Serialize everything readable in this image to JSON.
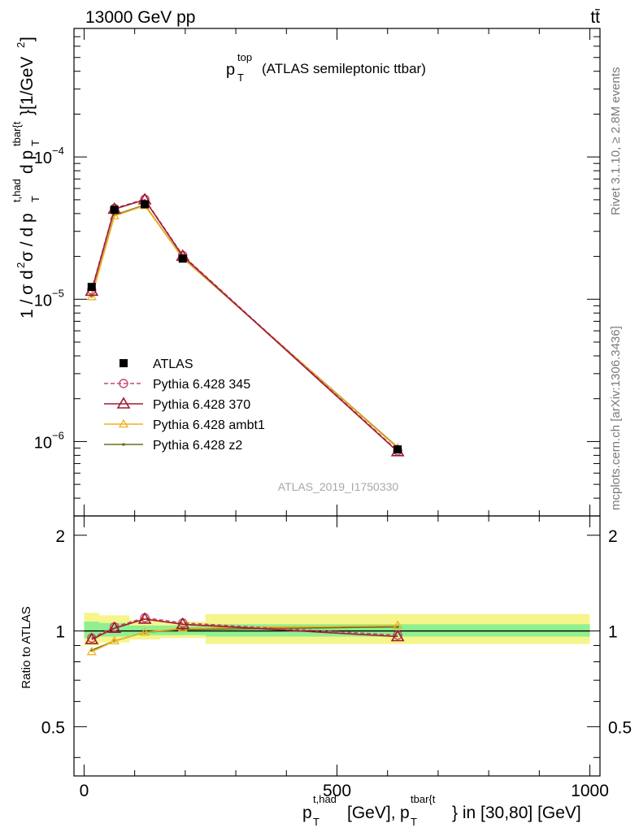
{
  "header": {
    "energy_label": "13000 GeV pp",
    "process_label": "tt̄",
    "plot_title": "(ATLAS semileptonic ttbar)",
    "plot_title_symbol": "p",
    "plot_title_sup": "top",
    "plot_title_sub": "T"
  },
  "side": {
    "rivet_label": "Rivet 3.1.10, ≥ 2.8M events",
    "mcplots_label": "mcplots.cern.ch [arXiv:1306.3436]"
  },
  "watermark": "ATLAS_2019_I1750330",
  "ratio_ylabel": "Ratio to ATLAS",
  "colors": {
    "data": "#000000",
    "p345": "#c44c6c",
    "p370": "#9e1b32",
    "ambt1": "#f0b020",
    "z2": "#6e6e1e",
    "band_inner": "#90f090",
    "band_outer": "#f5f58c"
  },
  "chart_data": [
    {
      "type": "line",
      "panel": "main",
      "title": "(ATLAS semileptonic ttbar)",
      "ylabel": "1 / σ d²σ / d p_T^{t,had} d p_T^{tbar{t}} [1/GeV²]",
      "xlim": [
        -20,
        1020
      ],
      "ylim": [
        3e-07,
        0.0008
      ],
      "y_scale": "log",
      "y_ticks": [
        {
          "value": 1e-06,
          "label": "10",
          "exp": "−6"
        },
        {
          "value": 1e-05,
          "label": "10",
          "exp": "−5"
        },
        {
          "value": 0.0001,
          "label": "10",
          "exp": "−4"
        }
      ],
      "x": [
        15,
        60,
        120,
        195,
        620
      ],
      "series": [
        {
          "name": "ATLAS",
          "marker": "square",
          "values": [
            1.22e-05,
            4.25e-05,
            4.65e-05,
            1.93e-05,
            8.8e-07
          ]
        },
        {
          "name": "Pythia 6.428 345",
          "marker": "circle",
          "dash": true,
          "values": [
            1.16e-05,
            4.35e-05,
            5.05e-05,
            2.03e-05,
            8.6e-07
          ]
        },
        {
          "name": "Pythia 6.428 370",
          "marker": "triangle",
          "values": [
            1.14e-05,
            4.3e-05,
            5e-05,
            2.01e-05,
            8.5e-07
          ]
        },
        {
          "name": "Pythia 6.428 ambt1",
          "marker": "small-triangle",
          "values": [
            1.04e-05,
            3.85e-05,
            4.55e-05,
            1.96e-05,
            9e-07
          ]
        },
        {
          "name": "Pythia 6.428 z2",
          "marker": "dot",
          "values": [
            1.05e-05,
            3.9e-05,
            4.6e-05,
            1.95e-05,
            9.1e-07
          ]
        }
      ],
      "legend_position": "middle-left"
    },
    {
      "type": "line",
      "panel": "ratio",
      "ylabel": "Ratio to ATLAS",
      "xlabel": "p_T^{t,had} [GeV], p_T^{tbar{t}} in [30,80] [GeV]",
      "xlim": [
        -20,
        1020
      ],
      "ylim": [
        0.35,
        2.3
      ],
      "y_scale": "log",
      "y_ticks": [
        {
          "value": 0.5,
          "label": "0.5"
        },
        {
          "value": 1,
          "label": "1"
        },
        {
          "value": 2,
          "label": "2"
        }
      ],
      "x_ticks": [
        {
          "value": 0,
          "label": "0"
        },
        {
          "value": 500,
          "label": "500"
        },
        {
          "value": 1000,
          "label": "1000"
        }
      ],
      "x": [
        15,
        60,
        120,
        195,
        620
      ],
      "bands": [
        {
          "x0": 0,
          "x1": 30,
          "inner": [
            0.95,
            1.07
          ],
          "outer": [
            0.9,
            1.14
          ]
        },
        {
          "x0": 30,
          "x1": 90,
          "inner": [
            0.96,
            1.06
          ],
          "outer": [
            0.92,
            1.12
          ]
        },
        {
          "x0": 90,
          "x1": 150,
          "inner": [
            0.97,
            1.04
          ],
          "outer": [
            0.94,
            1.08
          ]
        },
        {
          "x0": 150,
          "x1": 240,
          "inner": [
            0.97,
            1.04
          ],
          "outer": [
            0.95,
            1.07
          ]
        },
        {
          "x0": 240,
          "x1": 1000,
          "inner": [
            0.96,
            1.05
          ],
          "outer": [
            0.91,
            1.13
          ]
        }
      ],
      "series": [
        {
          "name": "Pythia 6.428 345",
          "values": [
            0.95,
            1.03,
            1.1,
            1.06,
            0.97
          ]
        },
        {
          "name": "Pythia 6.428 370",
          "values": [
            0.94,
            1.02,
            1.09,
            1.05,
            0.96
          ]
        },
        {
          "name": "Pythia 6.428 ambt1",
          "values": [
            0.86,
            0.93,
            0.99,
            1.02,
            1.04
          ]
        },
        {
          "name": "Pythia 6.428 z2",
          "values": [
            0.87,
            0.93,
            0.99,
            1.01,
            1.03
          ]
        }
      ]
    }
  ],
  "axis_labels": {
    "x_main": "[GeV],",
    "x_sym1": "p",
    "x_sub1": "T",
    "x_sup1": "t,had",
    "x_sym2": "p",
    "x_sub2": "T",
    "x_sup2": "tbar{t",
    "x_tail": "} in [30,80] [GeV]",
    "y_pre": "1 / σ d",
    "y_sq": "2",
    "y_mid": "σ / d p",
    "y_sub1": "T",
    "y_sup1": "t,had",
    "y_mid2": "d p",
    "y_sub2": "T",
    "y_sup2": "tbar{t",
    "y_unit": "}[1/GeV",
    "y_unit_sq": "2",
    "y_close": "]"
  }
}
